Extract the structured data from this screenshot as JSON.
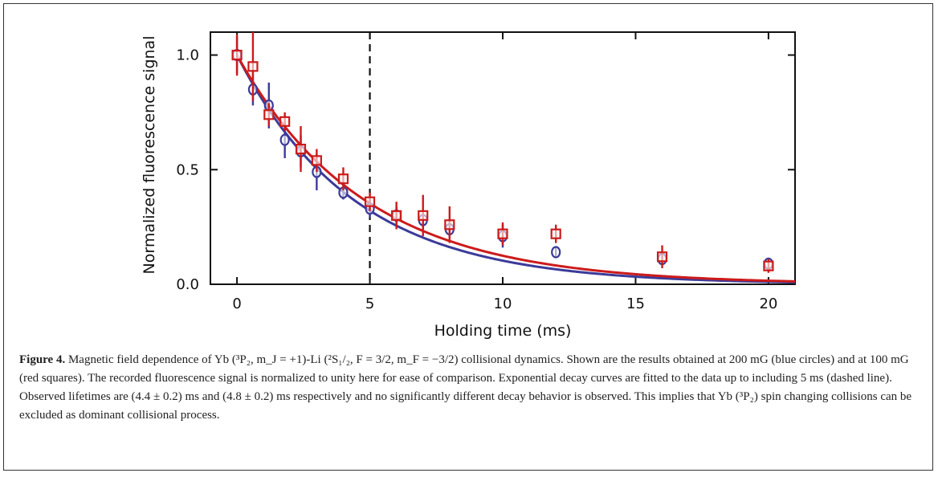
{
  "chart_data": {
    "type": "scatter",
    "xlabel": "Holding time (ms)",
    "ylabel": "Normalized fluorescence signal",
    "xlim": [
      -1.0,
      21.0
    ],
    "ylim": [
      0.0,
      1.1
    ],
    "xticks": [
      "0",
      "5",
      "10",
      "15",
      "20"
    ],
    "xtick_values": [
      0,
      5,
      10,
      15,
      20
    ],
    "yticks": [
      "0.0",
      "0.5",
      "1.0"
    ],
    "ytick_values": [
      0.0,
      0.5,
      1.0
    ],
    "grid": false,
    "dashed_vline_x": 5,
    "series": [
      {
        "color": "#3b3b9a",
        "marker": "circle",
        "points": [
          {
            "x": 0.0,
            "y": 1.0,
            "err": 0.08
          },
          {
            "x": 0.6,
            "y": 0.85,
            "err": 0.07
          },
          {
            "x": 1.2,
            "y": 0.78,
            "err": 0.1
          },
          {
            "x": 1.8,
            "y": 0.63,
            "err": 0.08
          },
          {
            "x": 2.4,
            "y": 0.58,
            "err": 0.07
          },
          {
            "x": 3.0,
            "y": 0.49,
            "err": 0.08
          },
          {
            "x": 4.0,
            "y": 0.4,
            "err": 0.03
          },
          {
            "x": 5.0,
            "y": 0.33,
            "err": 0.04
          },
          {
            "x": 6.0,
            "y": 0.3,
            "err": 0.04
          },
          {
            "x": 7.0,
            "y": 0.28,
            "err": 0.04
          },
          {
            "x": 8.0,
            "y": 0.24,
            "err": 0.04
          },
          {
            "x": 10.0,
            "y": 0.21,
            "err": 0.05
          },
          {
            "x": 12.0,
            "y": 0.14,
            "err": 0.02
          },
          {
            "x": 16.0,
            "y": 0.11,
            "err": 0.02
          },
          {
            "x": 20.0,
            "y": 0.09,
            "err": 0.02
          }
        ],
        "fit": {
          "model": "exponential",
          "amplitude": 1.0,
          "tau": 4.4
        }
      },
      {
        "color": "#cc1b1b",
        "marker": "square",
        "points": [
          {
            "x": 0.0,
            "y": 1.0,
            "err": 0.09
          },
          {
            "x": 0.6,
            "y": 0.95,
            "err": 0.15
          },
          {
            "x": 1.2,
            "y": 0.74,
            "err": 0.05
          },
          {
            "x": 1.8,
            "y": 0.71,
            "err": 0.04
          },
          {
            "x": 2.4,
            "y": 0.59,
            "err": 0.1
          },
          {
            "x": 3.0,
            "y": 0.54,
            "err": 0.05
          },
          {
            "x": 4.0,
            "y": 0.46,
            "err": 0.05
          },
          {
            "x": 5.0,
            "y": 0.36,
            "err": 0.04
          },
          {
            "x": 6.0,
            "y": 0.3,
            "err": 0.06
          },
          {
            "x": 7.0,
            "y": 0.3,
            "err": 0.09
          },
          {
            "x": 8.0,
            "y": 0.26,
            "err": 0.08
          },
          {
            "x": 10.0,
            "y": 0.22,
            "err": 0.05
          },
          {
            "x": 12.0,
            "y": 0.22,
            "err": 0.04
          },
          {
            "x": 16.0,
            "y": 0.12,
            "err": 0.05
          },
          {
            "x": 20.0,
            "y": 0.08,
            "err": 0.03
          }
        ],
        "fit": {
          "model": "exponential",
          "amplitude": 1.0,
          "tau": 4.8
        }
      }
    ]
  },
  "caption": {
    "label": "Figure 4.",
    "text": "Magnetic field dependence of Yb (³P₂, m_J = +1)-Li (²S₁/₂, F = 3/2, m_F = −3/2) collisional dynamics. Shown are the results obtained at 200 mG (blue circles) and at 100 mG (red squares). The recorded fluorescence signal is normalized to unity here for ease of comparison. Exponential decay curves are fitted to the data up to including 5 ms (dashed line). Observed lifetimes are (4.4 ± 0.2)  ms and (4.8 ± 0.2)  ms respectively and no significantly different decay behavior is observed. This implies that Yb (³P₂) spin changing collisions can be excluded as dominant collisional process."
  }
}
